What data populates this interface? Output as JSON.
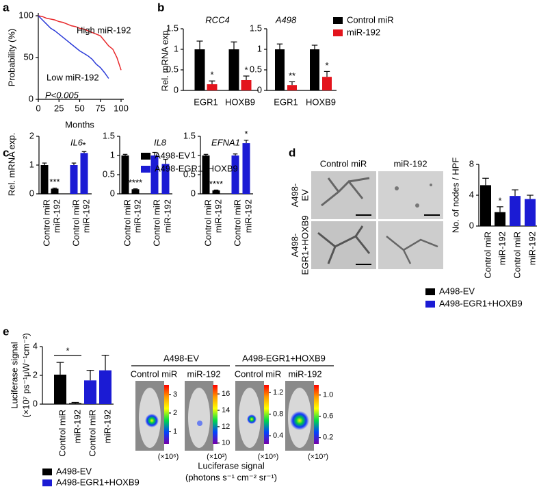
{
  "figure": {
    "panel_labels": [
      "a",
      "b",
      "c",
      "d",
      "e"
    ],
    "panel_d": {
      "columns": [
        "Control miR",
        "miR-192"
      ],
      "rows": [
        [
          "A498-",
          "EV"
        ],
        [
          "A498-",
          "EGR1+HOXB9"
        ]
      ]
    },
    "panel_e": {
      "groups": [
        {
          "title": "A498-EV",
          "columns": [
            "Control miR",
            "miR-192"
          ]
        },
        {
          "title": "A498-EGR1+HOXB9",
          "columns": [
            "Control miR",
            "miR-192"
          ]
        }
      ],
      "caption": [
        "Luciferase signal",
        "(photons s⁻¹ cm⁻² sr⁻¹)"
      ]
    }
  },
  "chart_data": [
    {
      "type": "line",
      "xlabel": "Months",
      "ylabel": "Probability (%)",
      "annotation": "P<0.005",
      "x": [
        0,
        5,
        10,
        15,
        20,
        25,
        30,
        35,
        40,
        45,
        50,
        55,
        60,
        65,
        70,
        75,
        80,
        85,
        90,
        95,
        100
      ],
      "xlim": [
        0,
        100
      ],
      "ylim": [
        0,
        100
      ],
      "xticks": [
        0,
        25,
        50,
        75,
        100
      ],
      "yticks": [
        0,
        50,
        100
      ],
      "series": [
        {
          "name": "High miR-192",
          "color": "#e8272a",
          "values": [
            100,
            99,
            97,
            96,
            95,
            93,
            92,
            90,
            88,
            87,
            85,
            84,
            82,
            80,
            78,
            76,
            70,
            64,
            60,
            50,
            35
          ]
        },
        {
          "name": "Low miR-192",
          "color": "#2a3ad8",
          "values": [
            100,
            95,
            90,
            85,
            82,
            78,
            74,
            70,
            66,
            62,
            58,
            55,
            52,
            48,
            42,
            38,
            32,
            25,
            null,
            null,
            null
          ]
        }
      ]
    },
    {
      "type": "bar",
      "group_by": "category",
      "ylabel": "Rel. mRNA exp.",
      "categories": [
        "EGR1",
        "HOXB9"
      ],
      "series": [
        {
          "name": "Control miR",
          "color": "#000000"
        },
        {
          "name": "miR-192",
          "color": "#e3141c"
        }
      ],
      "subplots": [
        {
          "title": "RCC4",
          "ylim": [
            0,
            1.5
          ],
          "yticks": [
            0,
            0.5,
            1,
            1.5
          ],
          "values": [
            [
              1,
              1
            ],
            [
              0.15,
              0.25
            ]
          ],
          "errors": [
            [
              0.2,
              0.18
            ],
            [
              0.08,
              0.1
            ]
          ],
          "stars": [
            [
              null,
              null
            ],
            [
              "*",
              "*"
            ]
          ]
        },
        {
          "title": "A498",
          "ylim": [
            0,
            1.5
          ],
          "yticks": [
            0,
            0.5,
            1,
            1.5
          ],
          "values": [
            [
              1,
              1
            ],
            [
              0.13,
              0.33
            ]
          ],
          "errors": [
            [
              0.13,
              0.1
            ],
            [
              0.08,
              0.13
            ]
          ],
          "stars": [
            [
              null,
              null
            ],
            [
              "**",
              "*"
            ]
          ]
        }
      ]
    },
    {
      "type": "bar",
      "group_by": "series",
      "ylabel": "Rel. mRNA exp.",
      "categories": [
        "Control miR",
        "miR-192"
      ],
      "series": [
        {
          "name": "A498-EV",
          "color": "#000000"
        },
        {
          "name": "A498-EGR1+HOXB9",
          "color": "#1b1bd4"
        }
      ],
      "subplots": [
        {
          "title": "IL6",
          "ylim": [
            0,
            2
          ],
          "yticks": [
            0,
            1,
            2
          ],
          "values": [
            [
              1.0,
              0.18
            ],
            [
              1.0,
              1.42
            ]
          ],
          "errors": [
            [
              0.07,
              0.02
            ],
            [
              0.07,
              0.05
            ]
          ],
          "stars": [
            [
              null,
              "***"
            ],
            [
              null,
              "*"
            ]
          ]
        },
        {
          "title": "IL8",
          "ylim": [
            0,
            1.5
          ],
          "yticks": [
            0,
            0.5,
            1,
            1.5
          ],
          "values": [
            [
              1.0,
              0.12
            ],
            [
              1.0,
              0.78
            ]
          ],
          "errors": [
            [
              0.03,
              0.01
            ],
            [
              0.08,
              0.12
            ]
          ],
          "stars": [
            [
              null,
              "****"
            ],
            [
              null,
              null
            ]
          ]
        },
        {
          "title": "EFNA1",
          "ylim": [
            0,
            1.5
          ],
          "yticks": [
            0,
            0.5,
            1,
            1.5
          ],
          "values": [
            [
              1.0,
              0.09
            ],
            [
              1.0,
              1.32
            ]
          ],
          "errors": [
            [
              0.03,
              0.01
            ],
            [
              0.04,
              0.08
            ]
          ],
          "stars": [
            [
              null,
              "****"
            ],
            [
              null,
              "*"
            ]
          ]
        }
      ]
    },
    {
      "type": "bar",
      "group_by": "series",
      "ylabel": "No. of nodes / HPF",
      "categories": [
        "Control miR",
        "miR-192"
      ],
      "series": [
        {
          "name": "A498-EV",
          "color": "#000000"
        },
        {
          "name": "A498-EGR1+HOXB9",
          "color": "#1b1bd4"
        }
      ],
      "subplots": [
        {
          "ylim": [
            0,
            8
          ],
          "yticks": [
            0,
            4,
            8
          ],
          "values": [
            [
              5.3,
              1.8
            ],
            [
              3.9,
              3.5
            ]
          ],
          "errors": [
            [
              0.9,
              0.7
            ],
            [
              0.8,
              0.5
            ]
          ],
          "stars": [
            [
              null,
              "*"
            ],
            [
              null,
              null
            ]
          ]
        }
      ]
    },
    {
      "type": "bar",
      "group_by": "series",
      "bracket": true,
      "ylabel": [
        "Luciferase signal",
        "(×10⁷ ps⁻¹μW⁻¹cm⁻²)"
      ],
      "categories": [
        "Control miR",
        "miR-192"
      ],
      "series": [
        {
          "name": "A498-EV",
          "color": "#000000"
        },
        {
          "name": "A498-EGR1+HOXB9",
          "color": "#1b1bd4"
        }
      ],
      "subplots": [
        {
          "ylim": [
            0,
            4
          ],
          "yticks": [
            0,
            2,
            4
          ],
          "values": [
            [
              2.05,
              0.07
            ],
            [
              1.65,
              2.35
            ]
          ],
          "errors": [
            [
              0.85,
              0.05
            ],
            [
              0.7,
              1.05
            ]
          ],
          "stars": [
            [
              "*",
              null
            ],
            [
              null,
              null
            ]
          ]
        }
      ]
    },
    {
      "type": "colorbar",
      "unit": "(×10⁶)",
      "ylim": [
        0.33,
        3.52
      ],
      "yticks": [
        1,
        2,
        3
      ]
    },
    {
      "type": "colorbar",
      "unit": "(×10³)",
      "ylim": [
        9.9,
        17.1
      ],
      "yticks": [
        10,
        12,
        14,
        16
      ]
    },
    {
      "type": "colorbar",
      "unit": "(×10⁶)",
      "ylim": [
        0.25,
        1.34
      ],
      "yticks": [
        0.4,
        0.8,
        1.2
      ]
    },
    {
      "type": "colorbar",
      "unit": "(×10⁷)",
      "ylim": [
        0.08,
        1.19
      ],
      "yticks": [
        0.2,
        0.6,
        {
          "value": 1.0,
          "label": "1.0"
        }
      ]
    }
  ]
}
